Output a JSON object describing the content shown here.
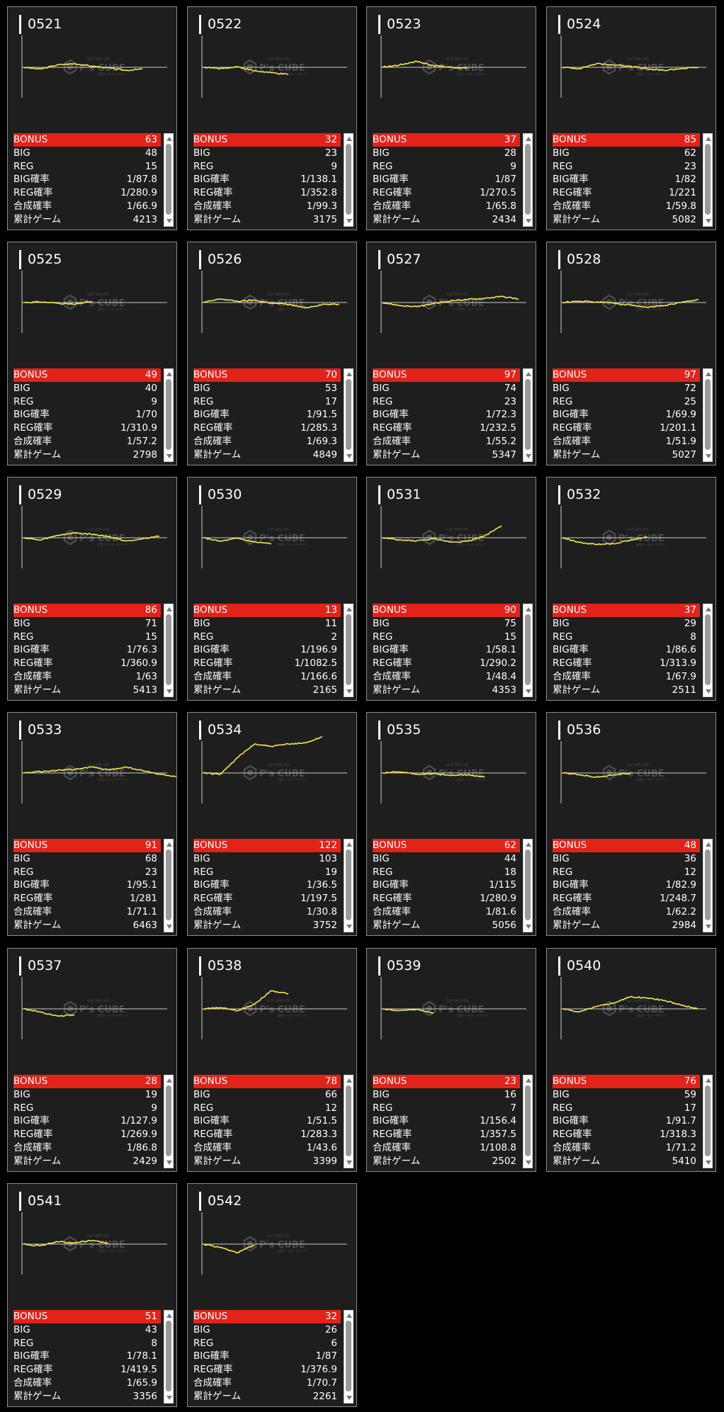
{
  "labels": {
    "bonus": "BONUS",
    "big": "BIG",
    "reg": "REG",
    "big_rate": "BIG確率",
    "reg_rate": "REG確率",
    "combined_rate": "合成確率",
    "total_games": "累計ゲーム"
  },
  "watermark": {
    "brand": "P's CUBE",
    "tagline": "SLOT DATA SITE",
    "sub": "全国ホールデータサイト"
  },
  "colors": {
    "background": "#000000",
    "panel": "#1e1e1e",
    "bonus_row": "#e2231a",
    "graph_line": "#f3e84a",
    "axis": "#cccccc"
  },
  "machines": [
    {
      "id": "0521",
      "bonus": "63",
      "big": "48",
      "reg": "15",
      "big_rate": "1/87.8",
      "reg_rate": "1/280.9",
      "combined_rate": "1/66.9",
      "total_games": "4213",
      "trend": [
        0,
        -3,
        4,
        6,
        2,
        -1,
        -5,
        -3
      ]
    },
    {
      "id": "0522",
      "bonus": "32",
      "big": "23",
      "reg": "9",
      "big_rate": "1/138.1",
      "reg_rate": "1/352.8",
      "combined_rate": "1/99.3",
      "total_games": "3175",
      "trend": [
        0,
        -2,
        1,
        -6,
        -9,
        -12
      ]
    },
    {
      "id": "0523",
      "bonus": "37",
      "big": "28",
      "reg": "9",
      "big_rate": "1/87",
      "reg_rate": "1/270.5",
      "combined_rate": "1/65.8",
      "total_games": "2434",
      "trend": [
        0,
        4,
        10,
        3,
        0,
        -2
      ]
    },
    {
      "id": "0524",
      "bonus": "85",
      "big": "62",
      "reg": "23",
      "big_rate": "1/82",
      "reg_rate": "1/221",
      "combined_rate": "1/59.8",
      "total_games": "5082",
      "trend": [
        0,
        -2,
        6,
        4,
        2,
        -3,
        -5,
        -2,
        0
      ]
    },
    {
      "id": "0525",
      "bonus": "49",
      "big": "40",
      "reg": "9",
      "big_rate": "1/70",
      "reg_rate": "1/310.9",
      "combined_rate": "1/57.2",
      "total_games": "2798",
      "trend": [
        0,
        1,
        -1,
        -3,
        2
      ]
    },
    {
      "id": "0526",
      "bonus": "70",
      "big": "53",
      "reg": "17",
      "big_rate": "1/91.5",
      "reg_rate": "1/285.3",
      "combined_rate": "1/69.3",
      "total_games": "4849",
      "trend": [
        0,
        6,
        2,
        4,
        -1,
        -3,
        -9,
        -3,
        -3
      ]
    },
    {
      "id": "0527",
      "bonus": "97",
      "big": "74",
      "reg": "23",
      "big_rate": "1/72.3",
      "reg_rate": "1/232.5",
      "combined_rate": "1/55.2",
      "total_games": "5347",
      "trend": [
        0,
        -5,
        -7,
        -2,
        3,
        5,
        7,
        10,
        6
      ]
    },
    {
      "id": "0528",
      "bonus": "97",
      "big": "72",
      "reg": "25",
      "big_rate": "1/69.9",
      "reg_rate": "1/201.1",
      "combined_rate": "1/51.9",
      "total_games": "5027",
      "trend": [
        0,
        2,
        1,
        -1,
        -4,
        -8,
        -5,
        0,
        5
      ]
    },
    {
      "id": "0529",
      "bonus": "86",
      "big": "71",
      "reg": "15",
      "big_rate": "1/76.3",
      "reg_rate": "1/360.9",
      "combined_rate": "1/63",
      "total_games": "5413",
      "trend": [
        0,
        -4,
        4,
        8,
        6,
        2,
        -5,
        -2,
        3
      ]
    },
    {
      "id": "0530",
      "bonus": "13",
      "big": "11",
      "reg": "2",
      "big_rate": "1/196.9",
      "reg_rate": "1/1082.5",
      "combined_rate": "1/166.6",
      "total_games": "2165",
      "trend": [
        0,
        -6,
        -1,
        -7,
        -10
      ]
    },
    {
      "id": "0531",
      "bonus": "90",
      "big": "75",
      "reg": "15",
      "big_rate": "1/58.1",
      "reg_rate": "1/290.2",
      "combined_rate": "1/48.4",
      "total_games": "4353",
      "trend": [
        0,
        -4,
        -5,
        -2,
        -7,
        -6,
        3,
        20
      ]
    },
    {
      "id": "0532",
      "bonus": "37",
      "big": "29",
      "reg": "8",
      "big_rate": "1/86.6",
      "reg_rate": "1/313.9",
      "combined_rate": "1/67.9",
      "total_games": "2511",
      "trend": [
        0,
        -8,
        -11,
        -10,
        -4,
        1
      ]
    },
    {
      "id": "0533",
      "bonus": "91",
      "big": "68",
      "reg": "23",
      "big_rate": "1/95.1",
      "reg_rate": "1/281",
      "combined_rate": "1/71.1",
      "total_games": "6463",
      "trend": [
        0,
        2,
        4,
        6,
        10,
        5,
        10,
        4,
        -2,
        -6
      ]
    },
    {
      "id": "0534",
      "bonus": "122",
      "big": "103",
      "reg": "19",
      "big_rate": "1/36.5",
      "reg_rate": "1/197.5",
      "combined_rate": "1/30.8",
      "total_games": "3752",
      "trend": [
        0,
        -2,
        25,
        48,
        44,
        48,
        50,
        60
      ]
    },
    {
      "id": "0535",
      "bonus": "62",
      "big": "44",
      "reg": "18",
      "big_rate": "1/115",
      "reg_rate": "1/280.9",
      "combined_rate": "1/81.6",
      "total_games": "5056",
      "trend": [
        0,
        2,
        -2,
        -1,
        -4,
        -3,
        -7
      ]
    },
    {
      "id": "0536",
      "bonus": "48",
      "big": "36",
      "reg": "12",
      "big_rate": "1/82.9",
      "reg_rate": "1/248.7",
      "combined_rate": "1/62.2",
      "total_games": "2984",
      "trend": [
        0,
        -3,
        -7,
        -3,
        -1
      ]
    },
    {
      "id": "0537",
      "bonus": "28",
      "big": "19",
      "reg": "9",
      "big_rate": "1/127.9",
      "reg_rate": "1/269.9",
      "combined_rate": "1/86.8",
      "total_games": "2429",
      "trend": [
        0,
        -5,
        -12,
        -10
      ]
    },
    {
      "id": "0538",
      "bonus": "78",
      "big": "66",
      "reg": "12",
      "big_rate": "1/51.5",
      "reg_rate": "1/283.3",
      "combined_rate": "1/43.6",
      "total_games": "3399",
      "trend": [
        0,
        2,
        -3,
        8,
        30,
        25
      ]
    },
    {
      "id": "0539",
      "bonus": "23",
      "big": "16",
      "reg": "7",
      "big_rate": "1/156.4",
      "reg_rate": "1/357.5",
      "combined_rate": "1/108.8",
      "total_games": "2502",
      "trend": [
        0,
        -3,
        -1,
        -7
      ]
    },
    {
      "id": "0540",
      "bonus": "76",
      "big": "59",
      "reg": "17",
      "big_rate": "1/91.7",
      "reg_rate": "1/318.3",
      "combined_rate": "1/71.2",
      "total_games": "5410",
      "trend": [
        0,
        -5,
        4,
        10,
        20,
        18,
        14,
        6,
        0
      ]
    },
    {
      "id": "0541",
      "bonus": "51",
      "big": "43",
      "reg": "8",
      "big_rate": "1/78.1",
      "reg_rate": "1/419.5",
      "combined_rate": "1/65.9",
      "total_games": "3356",
      "trend": [
        0,
        -3,
        4,
        2,
        6,
        1
      ]
    },
    {
      "id": "0542",
      "bonus": "32",
      "big": "26",
      "reg": "6",
      "big_rate": "1/87",
      "reg_rate": "1/376.9",
      "combined_rate": "1/70.7",
      "total_games": "2261",
      "trend": [
        0,
        -6,
        -14,
        -2
      ]
    }
  ]
}
